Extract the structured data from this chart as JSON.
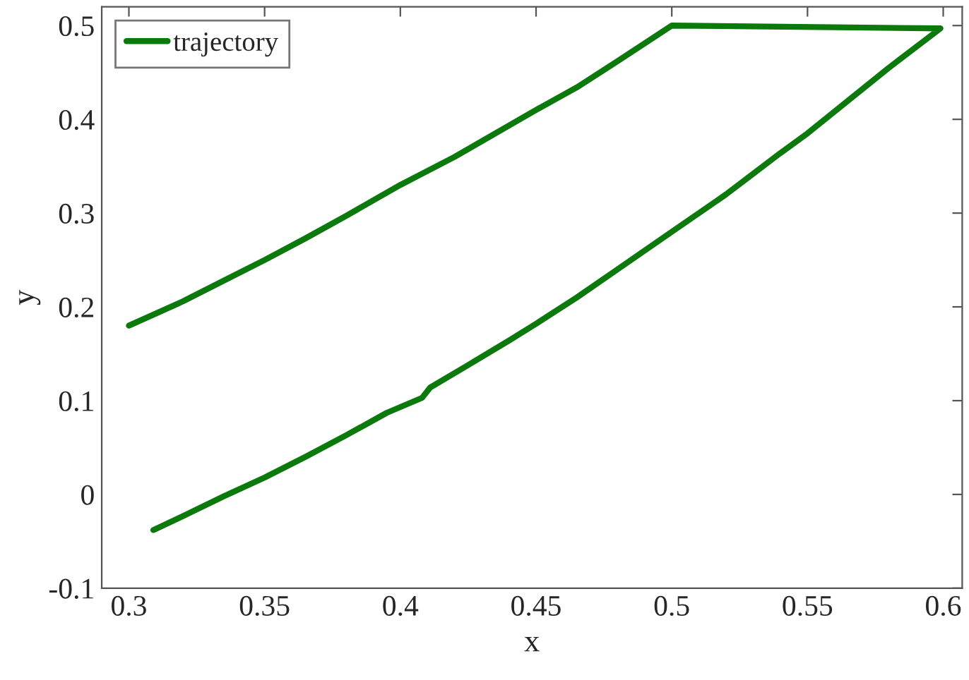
{
  "chart_data": {
    "type": "line",
    "xlabel": "x",
    "ylabel": "y",
    "series": [
      {
        "name": "trajectory",
        "color": "#0b790b",
        "x": [
          0.309,
          0.32,
          0.335,
          0.35,
          0.365,
          0.38,
          0.395,
          0.408,
          0.411,
          0.425,
          0.44,
          0.45,
          0.465,
          0.48,
          0.5,
          0.52,
          0.54,
          0.55,
          0.565,
          0.58,
          0.599,
          0.5,
          0.48,
          0.465,
          0.45,
          0.435,
          0.42,
          0.4,
          0.38,
          0.365,
          0.35,
          0.335,
          0.32,
          0.3
        ],
        "values": [
          -0.038,
          -0.023,
          -0.002,
          0.018,
          0.04,
          0.063,
          0.087,
          0.103,
          0.114,
          0.138,
          0.164,
          0.182,
          0.21,
          0.24,
          0.28,
          0.32,
          0.364,
          0.385,
          0.42,
          0.455,
          0.497,
          0.5,
          0.462,
          0.434,
          0.41,
          0.385,
          0.36,
          0.33,
          0.297,
          0.273,
          0.25,
          0.228,
          0.206,
          0.18
        ]
      }
    ],
    "xlim": [
      0.29,
      0.607
    ],
    "ylim": [
      -0.1,
      0.52
    ],
    "xticks": [
      0.3,
      0.35,
      0.4,
      0.45,
      0.5,
      0.55,
      0.6
    ],
    "yticks": [
      -0.1,
      0,
      0.1,
      0.2,
      0.3,
      0.4,
      0.5
    ],
    "legend": "top left",
    "grid": false,
    "marker": "none",
    "line_style": "solid"
  }
}
